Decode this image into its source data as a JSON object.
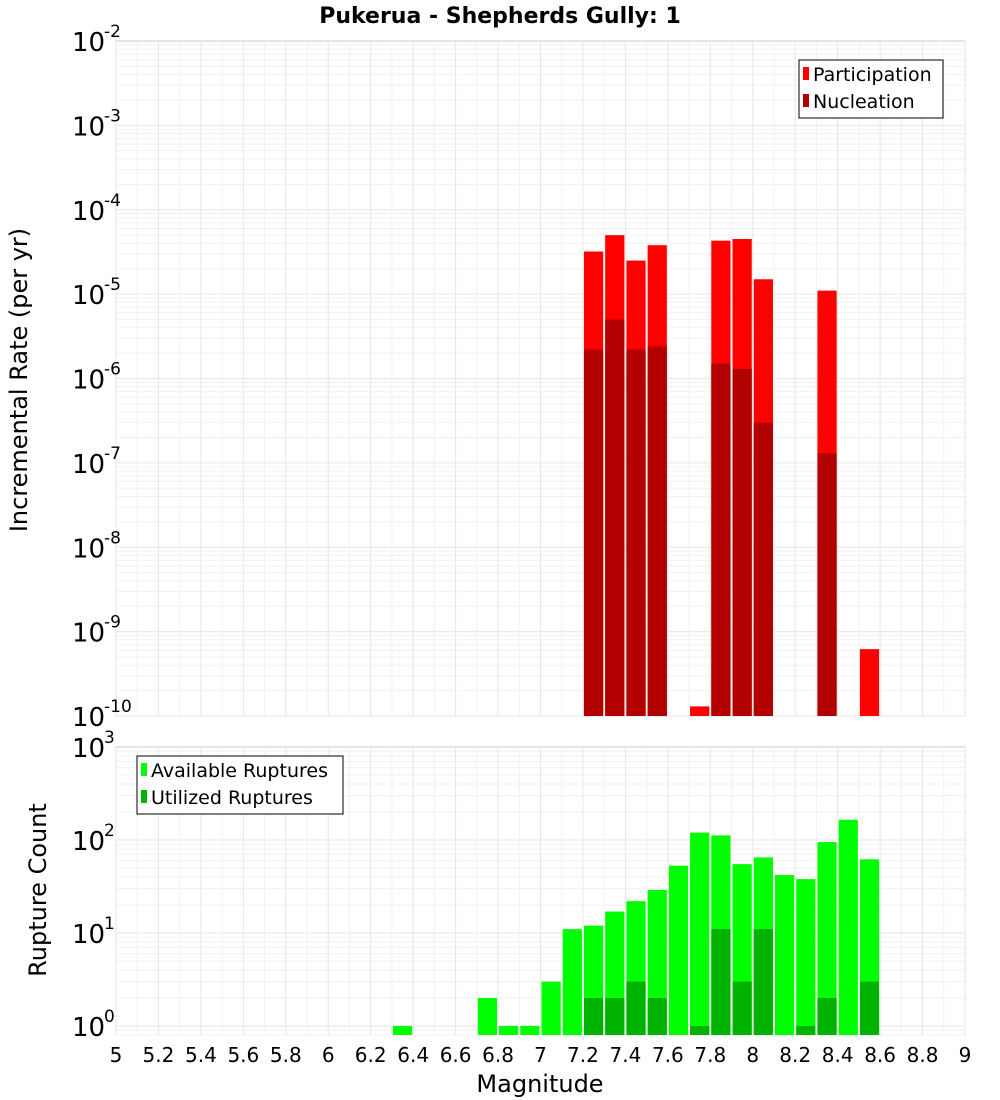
{
  "chart_data": [
    {
      "type": "bar",
      "title": "Pukerua - Shepherds Gully: 1",
      "ylabel": "Incremental Rate (per yr)",
      "yscale": "log",
      "ylim": [
        1e-10,
        0.01
      ],
      "yticks": [
        {
          "base": "10",
          "exp": "-10"
        },
        {
          "base": "10",
          "exp": "-9"
        },
        {
          "base": "10",
          "exp": "-8"
        },
        {
          "base": "10",
          "exp": "-7"
        },
        {
          "base": "10",
          "exp": "-6"
        },
        {
          "base": "10",
          "exp": "-5"
        },
        {
          "base": "10",
          "exp": "-4"
        },
        {
          "base": "10",
          "exp": "-3"
        },
        {
          "base": "10",
          "exp": "-2"
        }
      ],
      "xlim": [
        5,
        9
      ],
      "grid": true,
      "legend_position": "top-right",
      "series": [
        {
          "name": "Participation",
          "color": "#ff0000",
          "x": [
            7.25,
            7.35,
            7.45,
            7.55,
            7.75,
            7.85,
            7.95,
            8.05,
            8.35,
            8.55
          ],
          "values": [
            3.2e-05,
            5e-05,
            2.5e-05,
            3.8e-05,
            1.3e-10,
            4.3e-05,
            4.5e-05,
            1.5e-05,
            1.1e-05,
            6.2e-10
          ]
        },
        {
          "name": "Nucleation",
          "color": "#b20000",
          "x": [
            7.25,
            7.35,
            7.45,
            7.55,
            7.85,
            7.95,
            8.05,
            8.35
          ],
          "values": [
            2.2e-06,
            5e-06,
            2.2e-06,
            2.4e-06,
            1.5e-06,
            1.3e-06,
            3e-07,
            1.3e-07
          ]
        }
      ]
    },
    {
      "type": "bar",
      "ylabel": "Rupture Count",
      "xlabel": "Magnitude",
      "yscale": "log",
      "ylim": [
        0.8,
        1000
      ],
      "yticks": [
        {
          "base": "10",
          "exp": "0"
        },
        {
          "base": "10",
          "exp": "1"
        },
        {
          "base": "10",
          "exp": "2"
        },
        {
          "base": "10",
          "exp": "3"
        }
      ],
      "xlim": [
        5,
        9
      ],
      "xticks": [
        "5",
        "5.2",
        "5.4",
        "5.6",
        "5.8",
        "6",
        "6.2",
        "6.4",
        "6.6",
        "6.8",
        "7",
        "7.2",
        "7.4",
        "7.6",
        "7.8",
        "8",
        "8.2",
        "8.4",
        "8.6",
        "8.8",
        "9"
      ],
      "grid": true,
      "legend_position": "top-left",
      "series": [
        {
          "name": "Available Ruptures",
          "color": "#00ff00",
          "x": [
            6.35,
            6.75,
            6.85,
            6.95,
            7.05,
            7.15,
            7.25,
            7.35,
            7.45,
            7.55,
            7.65,
            7.75,
            7.85,
            7.95,
            8.05,
            8.15,
            8.25,
            8.35,
            8.45,
            8.55
          ],
          "values": [
            1,
            2,
            1,
            1,
            3,
            11,
            12,
            17,
            22,
            29,
            53,
            120,
            112,
            55,
            65,
            42,
            38,
            95,
            165,
            62
          ]
        },
        {
          "name": "Utilized Ruptures",
          "color": "#00b200",
          "x": [
            7.25,
            7.35,
            7.45,
            7.55,
            7.75,
            7.85,
            7.95,
            8.05,
            8.25,
            8.35,
            8.55
          ],
          "values": [
            2,
            2,
            3,
            2,
            1,
            11,
            3,
            11,
            1,
            2,
            3
          ]
        }
      ]
    }
  ]
}
